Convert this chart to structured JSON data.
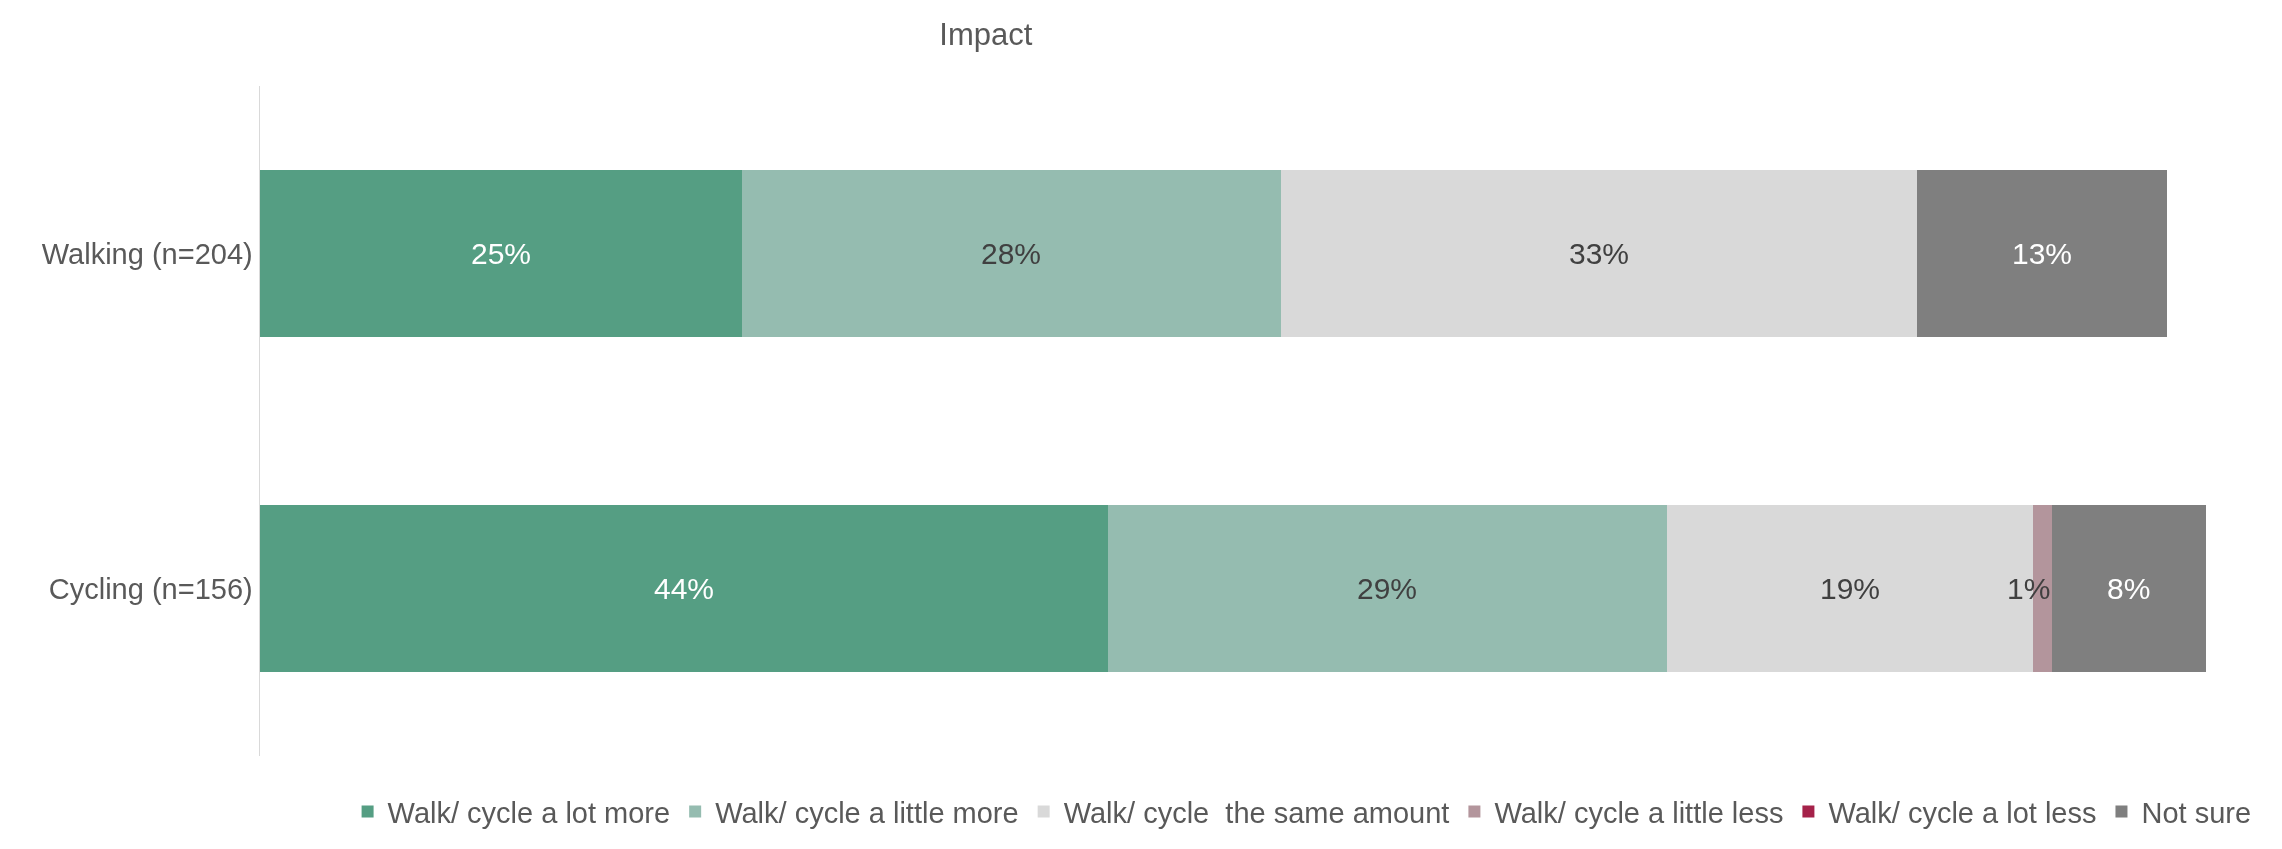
{
  "chart_data": {
    "type": "bar",
    "title": "Impact",
    "orientation": "horizontal",
    "stacked": true,
    "categories": [
      "Walking (n=204)",
      "Cycling (n=156)"
    ],
    "series": [
      {
        "name": "Walk/ cycle a lot more",
        "color": "#559e83",
        "values": [
          25,
          44
        ],
        "value_labels": [
          "25%",
          "44%"
        ]
      },
      {
        "name": "Walk/ cycle a little more",
        "color": "#95bcb0",
        "values": [
          28,
          29
        ],
        "value_labels": [
          "28%",
          "29%"
        ]
      },
      {
        "name": "Walk/ cycle  the same amount",
        "color": "#d9d9d9",
        "values": [
          33,
          19
        ],
        "value_labels": [
          "33%",
          "19%"
        ]
      },
      {
        "name": "Walk/ cycle a little less",
        "color": "#b3959c",
        "values": [
          null,
          1
        ],
        "value_labels": [
          null,
          "1%"
        ]
      },
      {
        "name": "Walk/ cycle a lot less",
        "color": "#a5224a",
        "values": [
          null,
          null
        ],
        "value_labels": [
          null,
          null
        ]
      },
      {
        "name": "Not sure",
        "color": "#7f7f7f",
        "values": [
          13,
          8
        ],
        "value_labels": [
          "13%",
          "8%"
        ]
      }
    ],
    "legend": "bottom",
    "grid": false,
    "tick_labels": "y"
  }
}
